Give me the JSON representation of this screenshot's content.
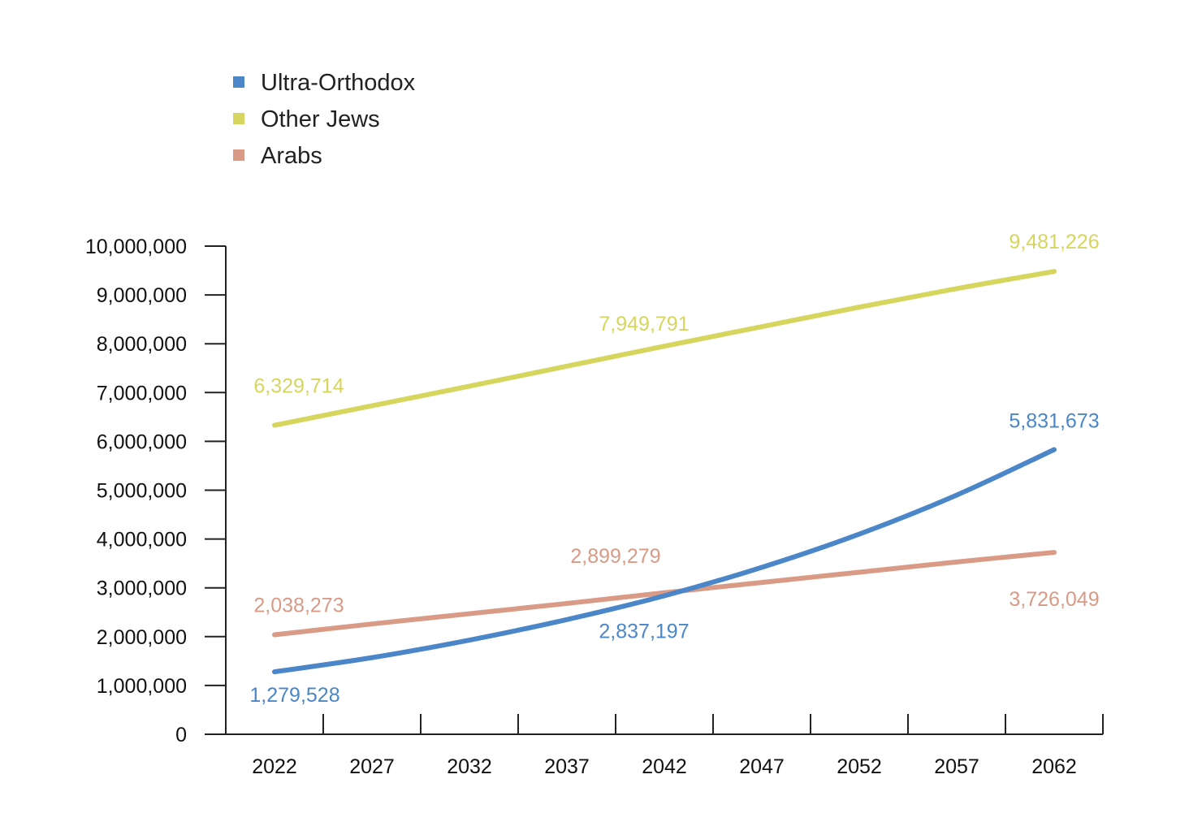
{
  "chart_data": {
    "type": "line",
    "title": "",
    "xlabel": "",
    "ylabel": "",
    "categories": [
      "2022",
      "2027",
      "2032",
      "2037",
      "2042",
      "2047",
      "2052",
      "2057",
      "2062"
    ],
    "ylim": [
      0,
      10000000
    ],
    "yticks": [
      "0",
      "1,000,000",
      "2,000,000",
      "3,000,000",
      "4,000,000",
      "5,000,000",
      "6,000,000",
      "7,000,000",
      "8,000,000",
      "9,000,000",
      "10,000,000"
    ],
    "legend_position": "top-left",
    "grid": false,
    "series": [
      {
        "name": "Ultra-Orthodox",
        "color": "#4A86C8",
        "values": [
          1279528,
          1570000,
          1930000,
          2350000,
          2837197,
          3420000,
          4100000,
          4900000,
          5831673
        ],
        "labels": [
          {
            "index": 0,
            "text": "1,279,528"
          },
          {
            "index": 4,
            "text": "2,837,197"
          },
          {
            "index": 8,
            "text": "5,831,673"
          }
        ]
      },
      {
        "name": "Other Jews",
        "color": "#D6D65E",
        "values": [
          6329714,
          6730000,
          7130000,
          7540000,
          7949791,
          8350000,
          8750000,
          9130000,
          9481226
        ],
        "labels": [
          {
            "index": 0,
            "text": "6,329,714"
          },
          {
            "index": 4,
            "text": "7,949,791"
          },
          {
            "index": 8,
            "text": "9,481,226"
          }
        ]
      },
      {
        "name": "Arabs",
        "color": "#D99A86",
        "values": [
          2038273,
          2260000,
          2470000,
          2680000,
          2899279,
          3110000,
          3320000,
          3530000,
          3726049
        ],
        "labels": [
          {
            "index": 0,
            "text": "2,038,273"
          },
          {
            "index": 4,
            "text": "2,899,279"
          },
          {
            "index": 8,
            "text": "3,726,049"
          }
        ]
      }
    ]
  }
}
